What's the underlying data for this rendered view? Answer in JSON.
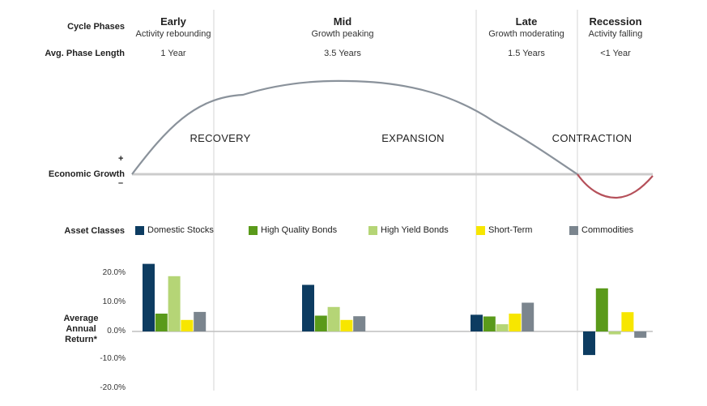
{
  "header": {
    "cycle_phases_label": "Cycle Phases",
    "avg_length_label": "Avg. Phase Length",
    "phases": [
      {
        "name": "Early",
        "description": "Activity rebounding",
        "length": "1 Year"
      },
      {
        "name": "Mid",
        "description": "Growth peaking",
        "length": "3.5 Years"
      },
      {
        "name": "Late",
        "description": "Growth moderating",
        "length": "1.5 Years"
      },
      {
        "name": "Recession",
        "description": "Activity falling",
        "length": "<1 Year"
      }
    ]
  },
  "growth": {
    "label": "Economic Growth",
    "plus": "+",
    "minus": "–",
    "stages": [
      "RECOVERY",
      "EXPANSION",
      "CONTRACTION"
    ],
    "curve_color": "#8a929b",
    "recession_curve_color": "#b5505a",
    "baseline_color": "#cccccc"
  },
  "legend": {
    "title": "Asset Classes"
  },
  "chart_data": {
    "type": "bar",
    "categories": [
      "Early",
      "Mid",
      "Late",
      "Recession"
    ],
    "ylabel": "Average Annual Return*",
    "ylim": [
      -20,
      25
    ],
    "yticks": [
      "20.0%",
      "10.0%",
      "0.0%",
      "-10.0%",
      "-20.0%"
    ],
    "ytick_values": [
      20,
      10,
      0,
      -10,
      -20
    ],
    "series": [
      {
        "name": "Domestic Stocks",
        "color": "#0d3c61",
        "values": [
          23.5,
          16.2,
          5.8,
          -8.2
        ]
      },
      {
        "name": "High Quality Bonds",
        "color": "#5a9a1a",
        "values": [
          6.2,
          5.5,
          5.2,
          15.0
        ]
      },
      {
        "name": "High Yield Bonds",
        "color": "#b5d576",
        "values": [
          19.2,
          8.5,
          2.5,
          -1.0
        ]
      },
      {
        "name": "Short-Term",
        "color": "#f7e600",
        "values": [
          4.0,
          4.0,
          6.2,
          6.7
        ]
      },
      {
        "name": "Commodities",
        "color": "#7b858e",
        "values": [
          6.8,
          5.3,
          10.0,
          -2.2
        ]
      }
    ]
  }
}
